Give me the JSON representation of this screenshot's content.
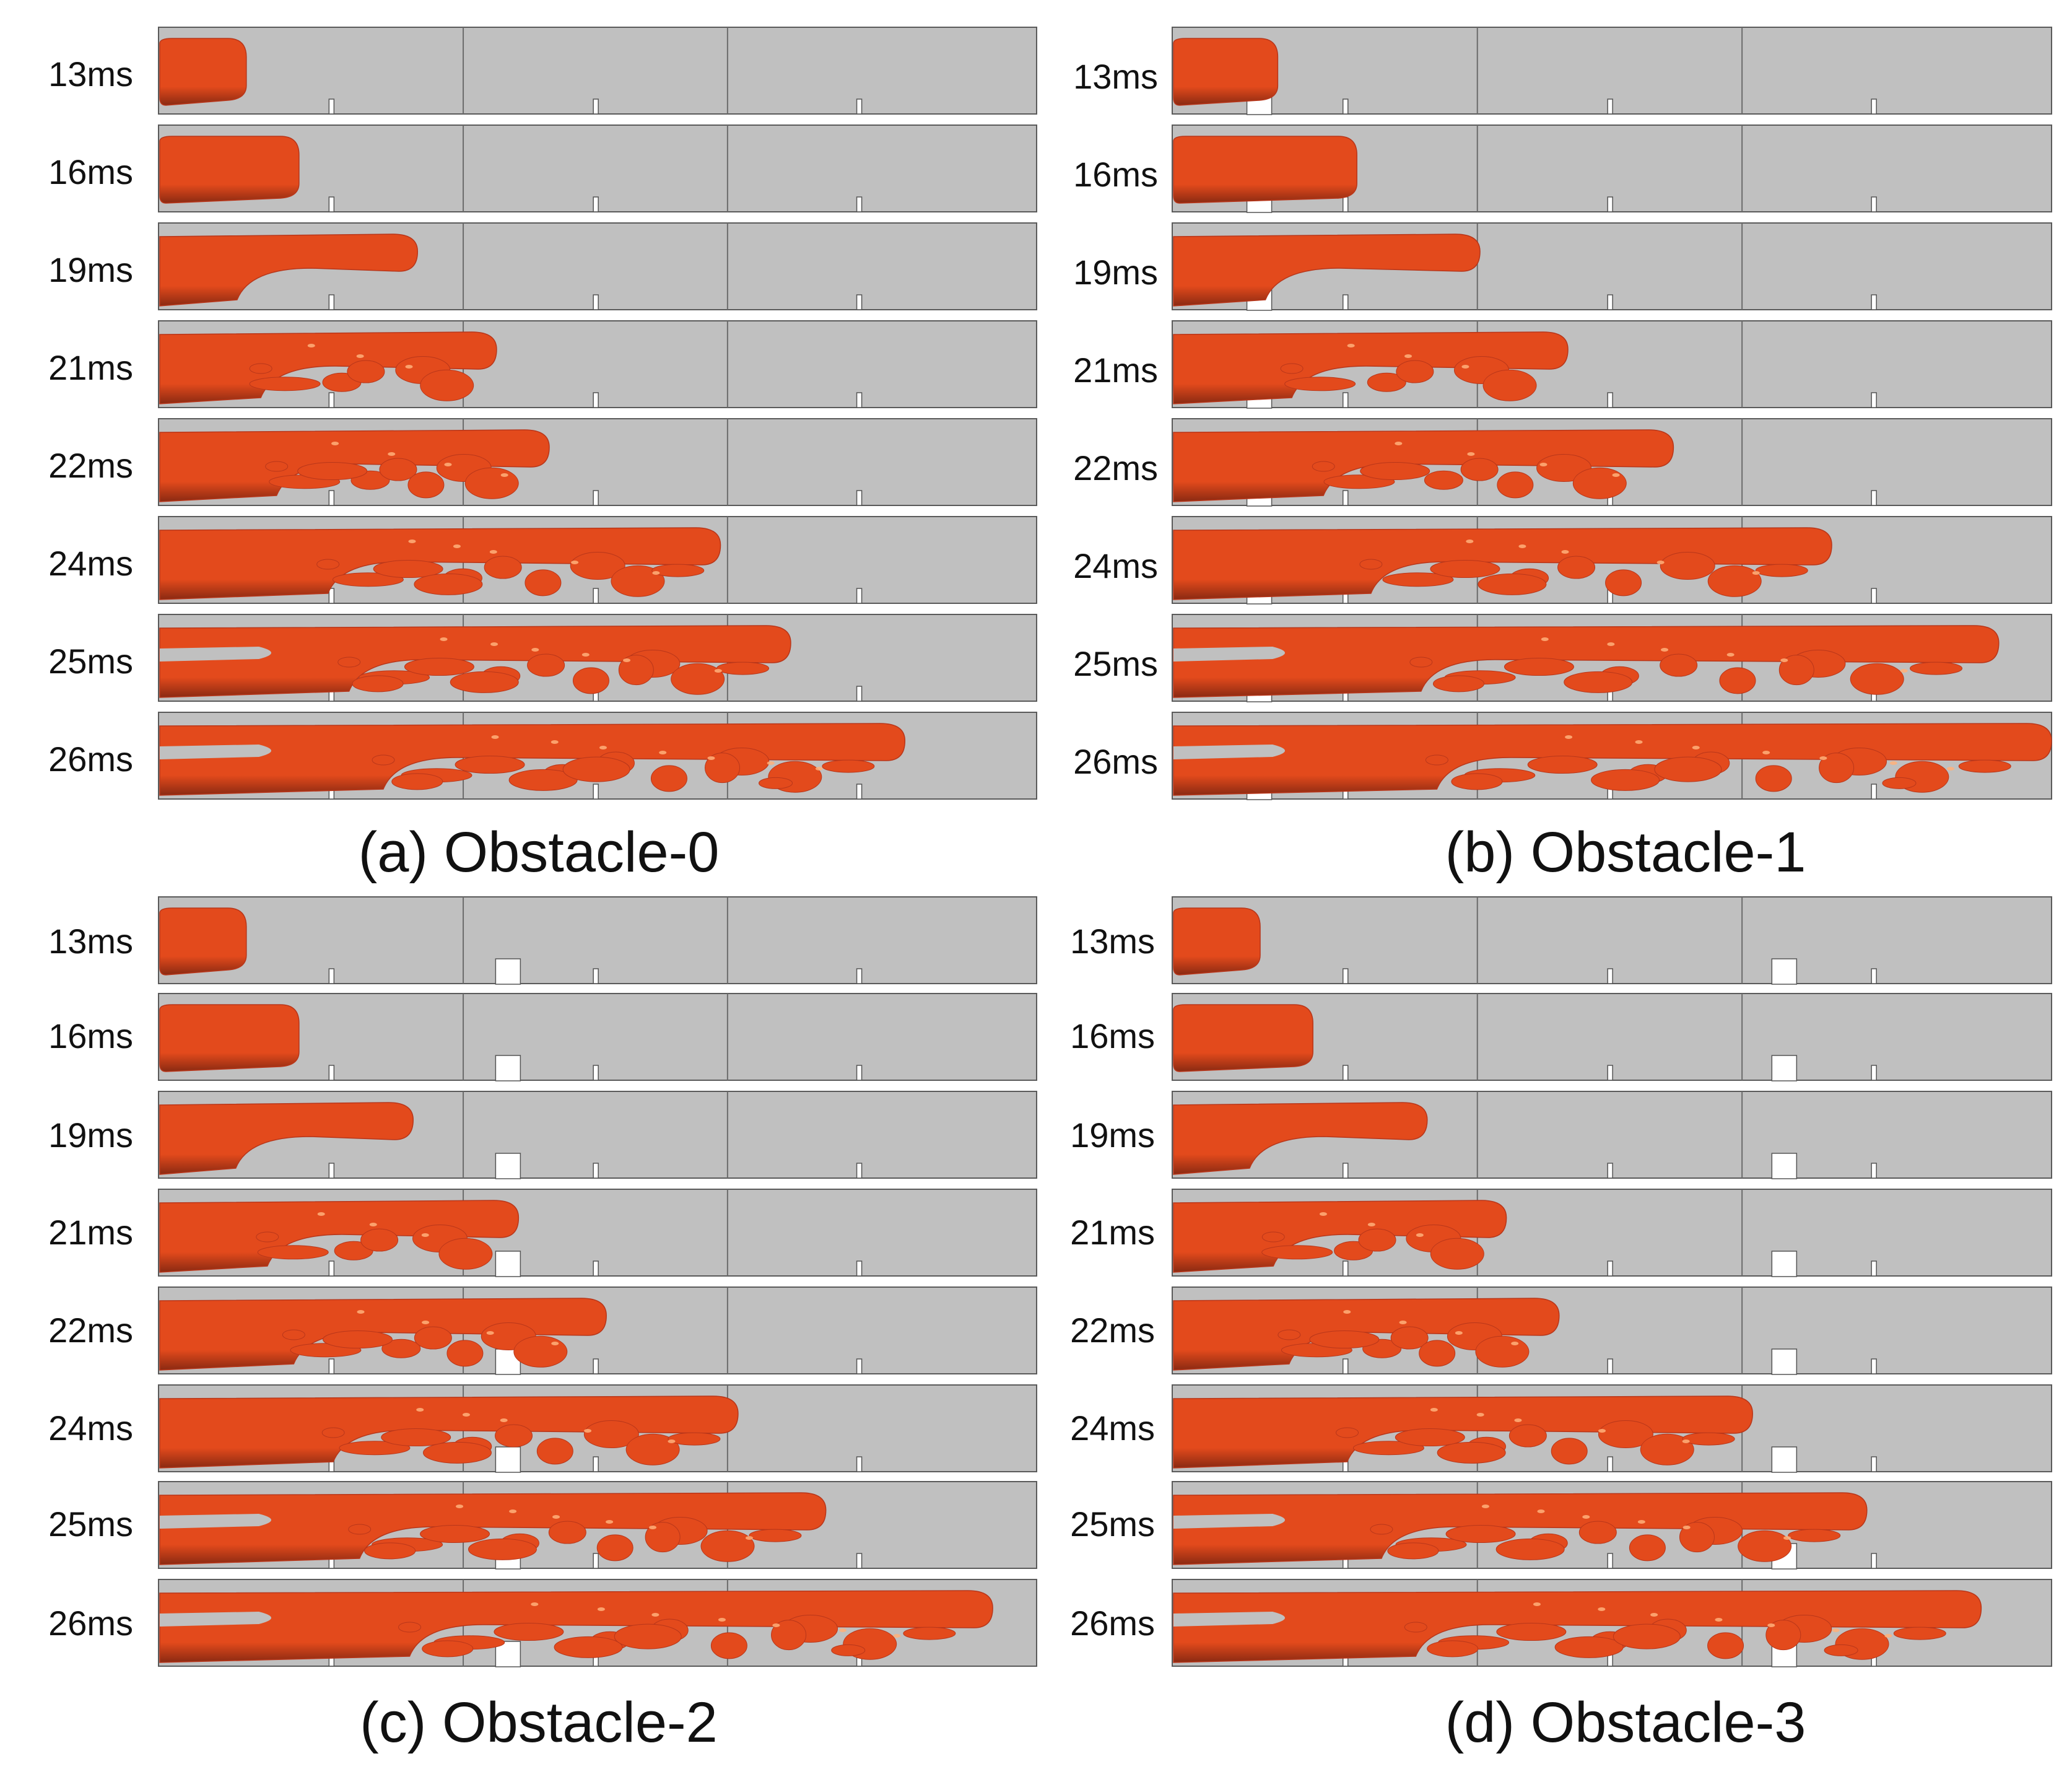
{
  "figure": {
    "panels": [
      {
        "id": "a",
        "caption": "(a) Obstacle-0"
      },
      {
        "id": "b",
        "caption": "(b) Obstacle-1"
      },
      {
        "id": "c",
        "caption": "(c) Obstacle-2"
      },
      {
        "id": "d",
        "caption": "(d) Obstacle-3"
      }
    ],
    "time_labels": [
      "13ms",
      "16ms",
      "19ms",
      "21ms",
      "22ms",
      "24ms",
      "25ms",
      "26ms"
    ],
    "colors": {
      "channel": "#c0c0c0",
      "channel_border": "#5a5a5a",
      "flame": "#e34a1c",
      "flame_dark": "#8a2a12",
      "flame_highlight": "#ffb07a"
    }
  }
}
